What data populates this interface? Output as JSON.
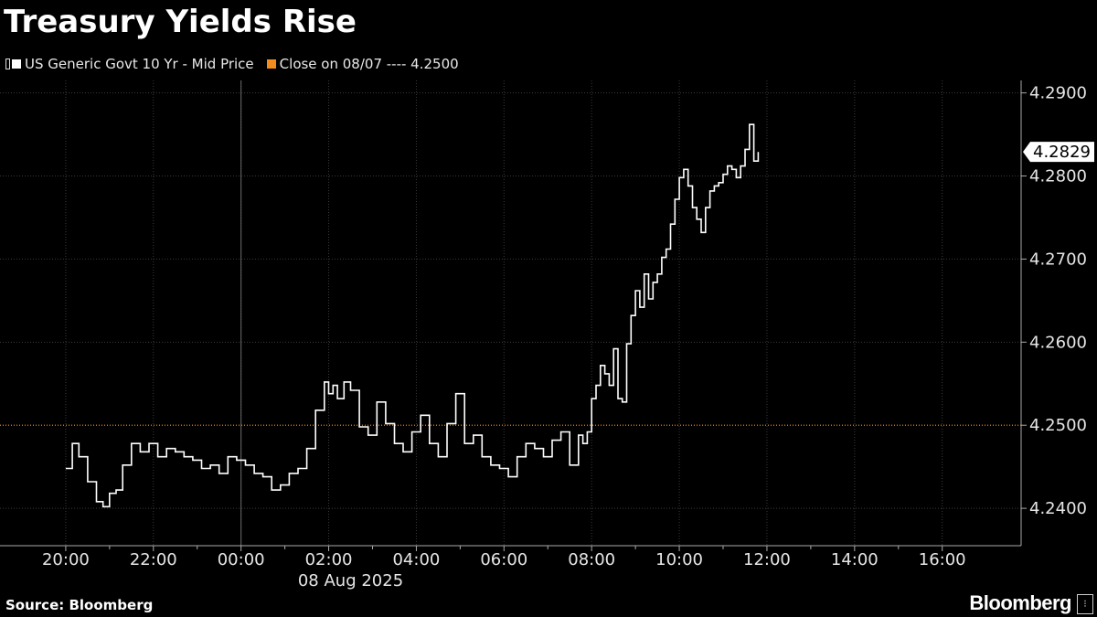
{
  "header": {
    "title": "Treasury Yields Rise"
  },
  "legend": [
    {
      "label": "US Generic Govt 10 Yr - Mid Price",
      "color": "#ffffff",
      "icon": "tall-bar-icon"
    },
    {
      "label": "Close on 08/07 ---- 4.2500",
      "color": "#f28c1e"
    }
  ],
  "footer": {
    "source": "Source: Bloomberg",
    "brand": "Bloomberg"
  },
  "chart_data": {
    "type": "line",
    "title": "Treasury Yields Rise",
    "xlabel": "08 Aug 2025",
    "ylabel": "",
    "x_ticks": [
      "20:00",
      "22:00",
      "00:00",
      "02:00",
      "04:00",
      "06:00",
      "08:00",
      "10:00",
      "12:00",
      "14:00",
      "16:00"
    ],
    "x_tick_hours": [
      20,
      22,
      24,
      26,
      28,
      30,
      32,
      34,
      36,
      38,
      40
    ],
    "xlim_hours": [
      18.5,
      41.8
    ],
    "y_ticks": [
      "4.2400",
      "4.2500",
      "4.2600",
      "4.2700",
      "4.2800",
      "4.2900"
    ],
    "y_tick_values": [
      4.24,
      4.25,
      4.26,
      4.27,
      4.28,
      4.29
    ],
    "ylim": [
      4.2355,
      4.2915
    ],
    "grid": true,
    "last_value_label": "4.2829",
    "reference_line": {
      "name": "Close on 08/07",
      "value": 4.25,
      "color": "#f28c1e"
    },
    "series": [
      {
        "name": "US Generic Govt 10 Yr - Mid Price",
        "color": "#ffffff",
        "time_hours": [
          20.0,
          20.15,
          20.3,
          20.5,
          20.7,
          20.85,
          21.0,
          21.15,
          21.3,
          21.5,
          21.7,
          21.9,
          22.1,
          22.3,
          22.5,
          22.7,
          22.9,
          23.1,
          23.3,
          23.5,
          23.7,
          23.9,
          24.1,
          24.3,
          24.5,
          24.7,
          24.9,
          25.1,
          25.3,
          25.5,
          25.7,
          25.9,
          26.0,
          26.1,
          26.2,
          26.35,
          26.5,
          26.7,
          26.9,
          27.1,
          27.3,
          27.5,
          27.7,
          27.9,
          28.1,
          28.3,
          28.5,
          28.7,
          28.9,
          29.1,
          29.3,
          29.5,
          29.7,
          29.9,
          30.1,
          30.3,
          30.5,
          30.7,
          30.9,
          31.1,
          31.3,
          31.5,
          31.7,
          31.8,
          31.9,
          32.0,
          32.1,
          32.2,
          32.3,
          32.4,
          32.5,
          32.6,
          32.7,
          32.8,
          32.9,
          33.0,
          33.1,
          33.2,
          33.3,
          33.4,
          33.5,
          33.6,
          33.7,
          33.8,
          33.9,
          34.0,
          34.1,
          34.2,
          34.3,
          34.4,
          34.5,
          34.6,
          34.7,
          34.8,
          34.9,
          35.0,
          35.1,
          35.2,
          35.3,
          35.4,
          35.5,
          35.6,
          35.7,
          35.8
        ],
        "values": [
          4.2448,
          4.2478,
          4.2462,
          4.2432,
          4.2408,
          4.2402,
          4.2418,
          4.2422,
          4.2452,
          4.2478,
          4.2468,
          4.2478,
          4.2462,
          4.2472,
          4.2468,
          4.2462,
          4.2458,
          4.2448,
          4.2452,
          4.2442,
          4.2462,
          4.2458,
          4.2452,
          4.2442,
          4.2438,
          4.2422,
          4.2428,
          4.2442,
          4.2448,
          4.2472,
          4.2518,
          4.2552,
          4.2538,
          4.2548,
          4.2532,
          4.2552,
          4.2542,
          4.2498,
          4.2488,
          4.2528,
          4.2502,
          4.2478,
          4.2468,
          4.2492,
          4.2512,
          4.2478,
          4.2462,
          4.2502,
          4.2538,
          4.2478,
          4.2488,
          4.2462,
          4.2452,
          4.2448,
          4.2438,
          4.2462,
          4.2478,
          4.2472,
          4.2462,
          4.2482,
          4.2492,
          4.2452,
          4.2488,
          4.2478,
          4.2492,
          4.2532,
          4.2548,
          4.2572,
          4.2562,
          4.2548,
          4.2592,
          4.2532,
          4.2528,
          4.2598,
          4.2632,
          4.2662,
          4.2642,
          4.2682,
          4.2652,
          4.2672,
          4.2682,
          4.2702,
          4.2712,
          4.2742,
          4.2772,
          4.2798,
          4.2808,
          4.2788,
          4.2762,
          4.2748,
          4.2732,
          4.2762,
          4.2782,
          4.2788,
          4.2792,
          4.2802,
          4.2812,
          4.2808,
          4.2798,
          4.2812,
          4.2832,
          4.2862,
          4.2818,
          4.2829
        ]
      }
    ]
  }
}
